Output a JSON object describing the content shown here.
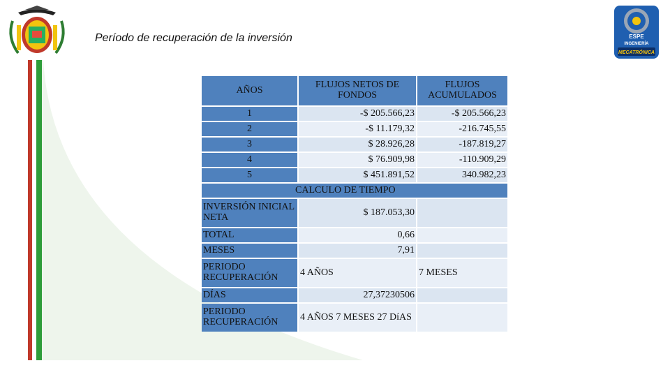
{
  "title": "Período de recuperación de la inversión",
  "badge": {
    "line1": "ESPE",
    "line2": "INGENIERÍA",
    "line3": "MECATRÓNICA"
  },
  "colors": {
    "header_blue": "#4f81bd",
    "light_blue": "#dbe5f1",
    "red_stripe": "#c0392b",
    "green_stripe": "#2e9d3a"
  },
  "table": {
    "headers": {
      "years": "AÑOS",
      "net_flows": "FLUJOS NETOS DE FONDOS",
      "cumulative": "FLUJOS ACUMULADOS"
    },
    "rows": [
      {
        "year": "1",
        "net": "-$ 205.566,23",
        "cum": "-$ 205.566,23"
      },
      {
        "year": "2",
        "net": "-$ 11.179,32",
        "cum": "-216.745,55"
      },
      {
        "year": "3",
        "net": "$ 28.926,28",
        "cum": "-187.819,27"
      },
      {
        "year": "4",
        "net": "$ 76.909,98",
        "cum": "-110.909,29"
      },
      {
        "year": "5",
        "net": "$ 451.891,52",
        "cum": "340.982,23"
      }
    ],
    "calc_title": "CALCULO DE TIEMPO",
    "calc": {
      "inversion_label": "INVERSIÓN INICIAL NETA",
      "inversion_value": "$ 187.053,30",
      "total_label": "TOTAL",
      "total_value": "0,66",
      "meses_label": "MESES",
      "meses_value": "7,91",
      "periodo_label": "PERIODO RECUPERACIÓN",
      "periodo_years": "4 AÑOS",
      "periodo_months": "7 MESES",
      "dias_label": "DÍAS",
      "dias_value": "27,37230506",
      "periodo2_label": "PERIODO RECUPERACIÓN",
      "periodo2_value": "4 AÑOS 7 MESES 27 DíAS"
    }
  }
}
